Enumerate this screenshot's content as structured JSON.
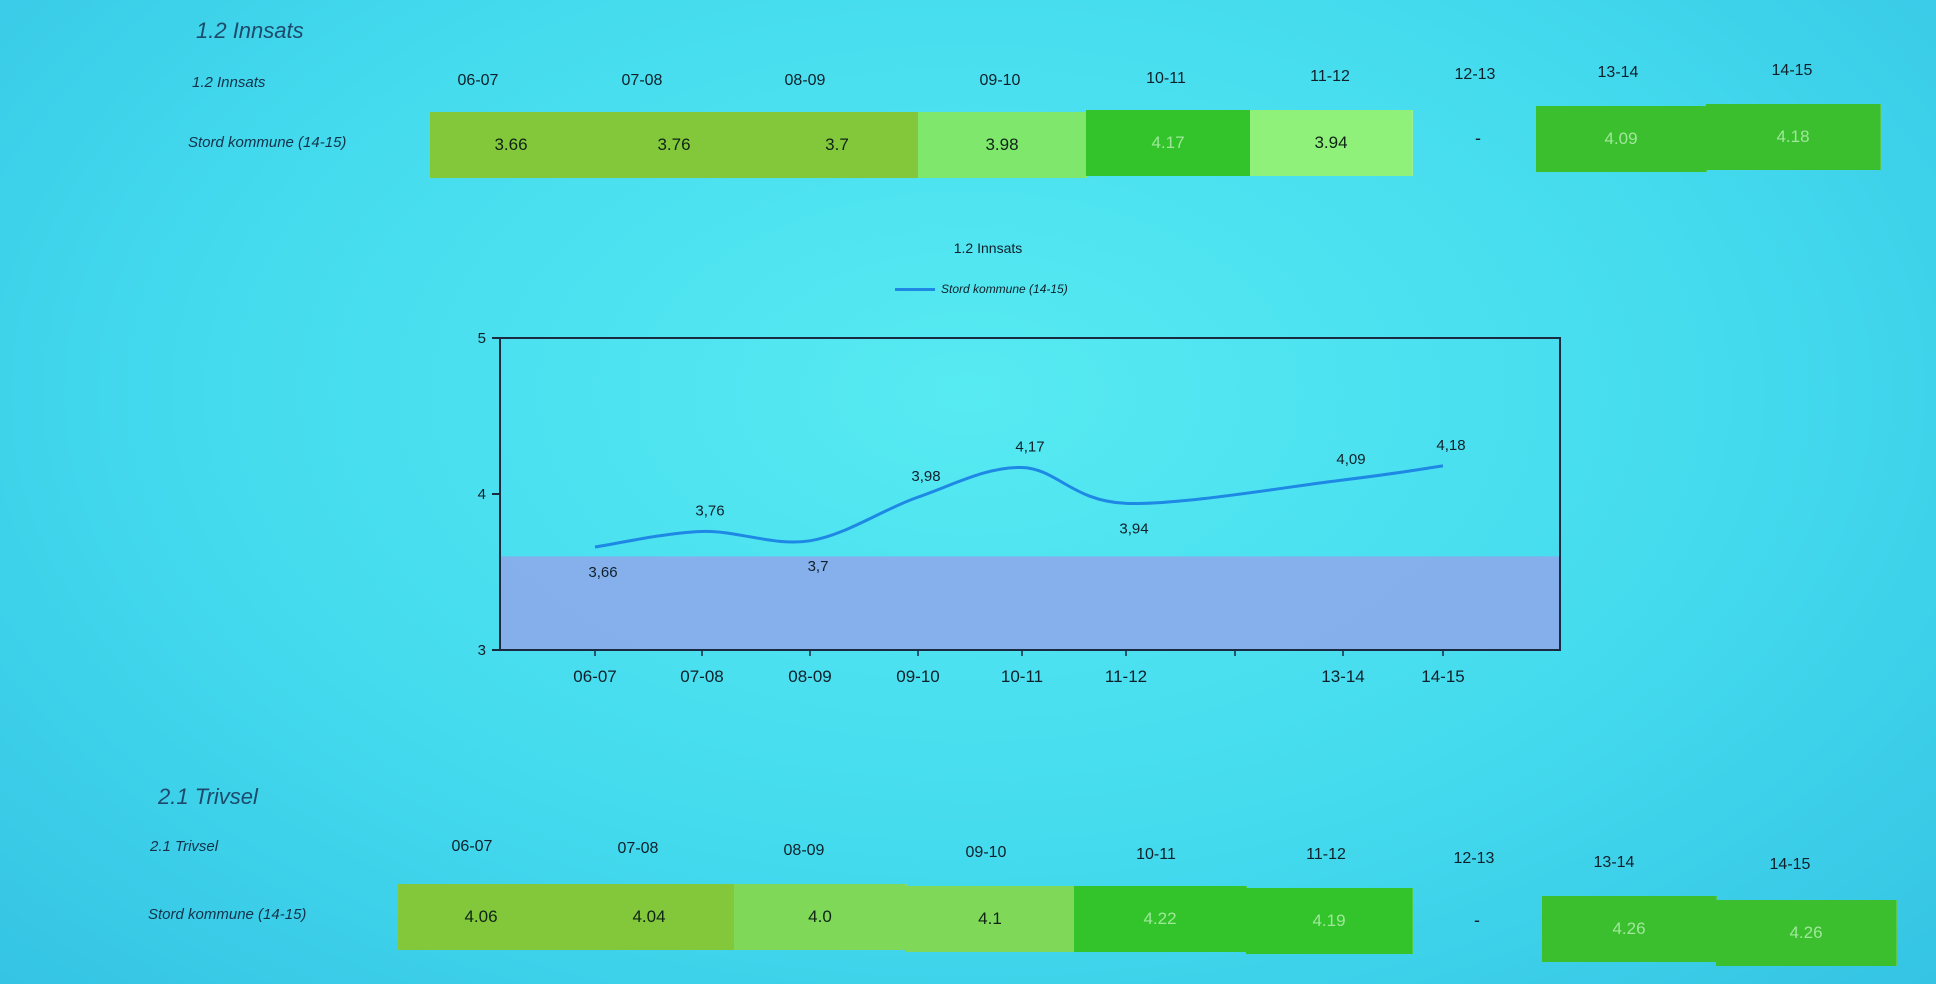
{
  "section1": {
    "title": "1.2 Innsats",
    "table_label": "1.2 Innsats",
    "row_label": "Stord kommune (14-15)",
    "columns": [
      "06-07",
      "07-08",
      "08-09",
      "09-10",
      "10-11",
      "11-12",
      "12-13",
      "13-14",
      "14-15"
    ],
    "cells": [
      {
        "value": "3.66",
        "color": "#82c83a",
        "text": "light"
      },
      {
        "value": "3.76",
        "color": "#82c83a",
        "text": "light"
      },
      {
        "value": "3.7",
        "color": "#82c83a",
        "text": "light"
      },
      {
        "value": "3.98",
        "color": "#7fe86c",
        "text": "light"
      },
      {
        "value": "4.17",
        "color": "#32c42a",
        "text": "dark"
      },
      {
        "value": "3.94",
        "color": "#8ff07a",
        "text": "light"
      },
      {
        "value": "-",
        "color": "",
        "text": "none"
      },
      {
        "value": "4.09",
        "color": "#3cbf2e",
        "text": "dark"
      },
      {
        "value": "4.18",
        "color": "#3cbf2e",
        "text": "dark"
      }
    ]
  },
  "chart": {
    "title": "1.2 Innsats",
    "legend": "Stord kommune (14-15)",
    "series_color": "#1e88e5",
    "band_color": "#8fa7ea"
  },
  "chart_data": {
    "type": "line",
    "title": "1.2 Innsats",
    "categories": [
      "06-07",
      "07-08",
      "08-09",
      "09-10",
      "10-11",
      "11-12",
      "12-13",
      "13-14",
      "14-15"
    ],
    "tick_labels": [
      "06-07",
      "07-08",
      "08-09",
      "09-10",
      "10-11",
      "11-12",
      "",
      "13-14",
      "14-15"
    ],
    "series": [
      {
        "name": "Stord kommune (14-15)",
        "values": [
          3.66,
          3.76,
          3.7,
          3.98,
          4.17,
          3.94,
          null,
          4.09,
          4.18
        ]
      }
    ],
    "point_labels": [
      "3,66",
      "3,76",
      "3,7",
      "3,98",
      "4,17",
      "3,94",
      "",
      "4,09",
      "4,18"
    ],
    "label_side": [
      "below",
      "above",
      "below",
      "above",
      "above",
      "below",
      "",
      "above",
      "above"
    ],
    "ylim": [
      3,
      5
    ],
    "yticks": [
      "3",
      "4",
      "5"
    ],
    "band": [
      3,
      3.6
    ],
    "legend": "top",
    "grid": false
  },
  "section2": {
    "title": "2.1 Trivsel",
    "table_label": "2.1 Trivsel",
    "row_label": "Stord kommune (14-15)",
    "columns": [
      "06-07",
      "07-08",
      "08-09",
      "09-10",
      "10-11",
      "11-12",
      "12-13",
      "13-14",
      "14-15"
    ],
    "cells": [
      {
        "value": "4.06",
        "color": "#82c83a",
        "text": "light"
      },
      {
        "value": "4.04",
        "color": "#82c83a",
        "text": "light"
      },
      {
        "value": "4.0",
        "color": "#7fd858",
        "text": "light"
      },
      {
        "value": "4.1",
        "color": "#7fd858",
        "text": "light"
      },
      {
        "value": "4.22",
        "color": "#32c42a",
        "text": "dark"
      },
      {
        "value": "4.19",
        "color": "#32c42a",
        "text": "dark"
      },
      {
        "value": "-",
        "color": "",
        "text": "none"
      },
      {
        "value": "4.26",
        "color": "#3cbf2e",
        "text": "dark"
      },
      {
        "value": "4.26",
        "color": "#3cbf2e",
        "text": "dark"
      }
    ]
  }
}
